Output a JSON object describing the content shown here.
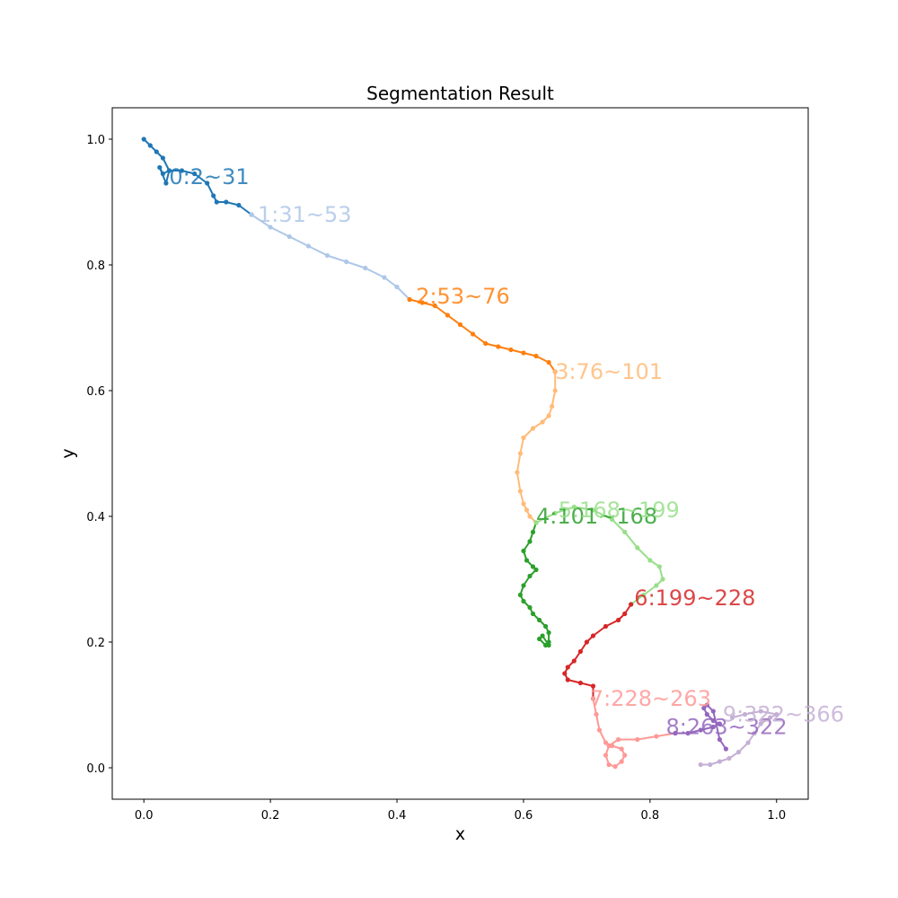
{
  "chart_data": {
    "type": "line",
    "title": "Segmentation Result",
    "xlabel": "x",
    "ylabel": "y",
    "xlim": [
      -0.05,
      1.05
    ],
    "ylim": [
      -0.05,
      1.05
    ],
    "x_ticks": [
      "0.0",
      "0.2",
      "0.4",
      "0.6",
      "0.8",
      "1.0"
    ],
    "y_ticks": [
      "0.0",
      "0.2",
      "0.4",
      "0.6",
      "0.8",
      "1.0"
    ],
    "grid": false,
    "markers": true,
    "series": [
      {
        "name": "0:2~31",
        "color": "#1f77b4",
        "label_at": [
          0.04,
          0.94
        ],
        "x": [
          0.0,
          0.01,
          0.02,
          0.03,
          0.04,
          0.035,
          0.025,
          0.03,
          0.04,
          0.06,
          0.08,
          0.1,
          0.11,
          0.115,
          0.13,
          0.15,
          0.17
        ],
        "y": [
          1.0,
          0.99,
          0.98,
          0.97,
          0.95,
          0.93,
          0.955,
          0.945,
          0.95,
          0.95,
          0.945,
          0.93,
          0.91,
          0.9,
          0.9,
          0.895,
          0.88
        ]
      },
      {
        "name": "1:31~53",
        "color": "#aec7e8",
        "label_at": [
          0.18,
          0.88
        ],
        "x": [
          0.17,
          0.2,
          0.23,
          0.26,
          0.29,
          0.32,
          0.35,
          0.38,
          0.4,
          0.42
        ],
        "y": [
          0.88,
          0.86,
          0.845,
          0.83,
          0.815,
          0.805,
          0.795,
          0.78,
          0.765,
          0.745
        ]
      },
      {
        "name": "2:53~76",
        "color": "#ff7f0e",
        "label_at": [
          0.43,
          0.75
        ],
        "x": [
          0.42,
          0.44,
          0.46,
          0.48,
          0.5,
          0.52,
          0.54,
          0.56,
          0.58,
          0.6,
          0.62,
          0.64,
          0.65
        ],
        "y": [
          0.745,
          0.74,
          0.735,
          0.72,
          0.705,
          0.69,
          0.675,
          0.67,
          0.665,
          0.66,
          0.655,
          0.645,
          0.63
        ]
      },
      {
        "name": "3:76~101",
        "color": "#ffbb78",
        "label_at": [
          0.65,
          0.63
        ],
        "x": [
          0.65,
          0.65,
          0.645,
          0.64,
          0.63,
          0.615,
          0.6,
          0.595,
          0.59,
          0.595,
          0.6,
          0.605,
          0.61,
          0.62
        ],
        "y": [
          0.63,
          0.6,
          0.575,
          0.56,
          0.55,
          0.54,
          0.525,
          0.5,
          0.47,
          0.44,
          0.42,
          0.41,
          0.4,
          0.39
        ]
      },
      {
        "name": "4:101~168",
        "color": "#2ca02c",
        "label_at": [
          0.62,
          0.4
        ],
        "x": [
          0.62,
          0.615,
          0.61,
          0.6,
          0.605,
          0.615,
          0.62,
          0.61,
          0.6,
          0.595,
          0.6,
          0.61,
          0.615,
          0.625,
          0.635,
          0.64,
          0.64,
          0.635,
          0.625,
          0.63,
          0.64
        ],
        "y": [
          0.39,
          0.375,
          0.36,
          0.345,
          0.33,
          0.32,
          0.315,
          0.305,
          0.29,
          0.275,
          0.265,
          0.255,
          0.245,
          0.235,
          0.225,
          0.215,
          0.2,
          0.195,
          0.205,
          0.21,
          0.195
        ]
      },
      {
        "name": "5:168~199",
        "color": "#98df8a",
        "label_at": [
          0.655,
          0.41
        ],
        "x": [
          0.62,
          0.65,
          0.68,
          0.71,
          0.74,
          0.76,
          0.78,
          0.8,
          0.815,
          0.82,
          0.81,
          0.79,
          0.77
        ],
        "y": [
          0.39,
          0.405,
          0.415,
          0.41,
          0.395,
          0.375,
          0.35,
          0.33,
          0.32,
          0.3,
          0.29,
          0.275,
          0.26
        ]
      },
      {
        "name": "6:199~228",
        "color": "#d62728",
        "label_at": [
          0.775,
          0.27
        ],
        "x": [
          0.77,
          0.76,
          0.75,
          0.73,
          0.71,
          0.7,
          0.69,
          0.68,
          0.67,
          0.665,
          0.67,
          0.69,
          0.71,
          0.71
        ],
        "y": [
          0.26,
          0.245,
          0.235,
          0.225,
          0.21,
          0.2,
          0.185,
          0.17,
          0.16,
          0.15,
          0.14,
          0.135,
          0.13,
          0.11
        ]
      },
      {
        "name": "7:228~263",
        "color": "#ff9896",
        "label_at": [
          0.705,
          0.11
        ],
        "x": [
          0.71,
          0.715,
          0.72,
          0.73,
          0.74,
          0.755,
          0.76,
          0.755,
          0.745,
          0.735,
          0.73,
          0.735,
          0.75,
          0.78,
          0.81,
          0.84
        ],
        "y": [
          0.11,
          0.085,
          0.06,
          0.04,
          0.035,
          0.03,
          0.02,
          0.01,
          0.002,
          0.005,
          0.02,
          0.035,
          0.045,
          0.045,
          0.05,
          0.055
        ]
      },
      {
        "name": "8:263~322",
        "color": "#9467bd",
        "label_at": [
          0.825,
          0.065
        ],
        "x": [
          0.84,
          0.86,
          0.88,
          0.9,
          0.91,
          0.9,
          0.89,
          0.885,
          0.89,
          0.9,
          0.91,
          0.92
        ],
        "y": [
          0.055,
          0.055,
          0.06,
          0.065,
          0.07,
          0.075,
          0.085,
          0.095,
          0.1,
          0.09,
          0.045,
          0.03
        ]
      },
      {
        "name": "9:322~366",
        "color": "#c5b0d5",
        "label_at": [
          0.915,
          0.085
        ],
        "x": [
          0.88,
          0.895,
          0.91,
          0.925,
          0.94,
          0.955,
          0.965,
          0.975,
          0.99,
          1.0,
          0.975,
          0.95,
          0.93
        ],
        "y": [
          0.005,
          0.005,
          0.01,
          0.015,
          0.025,
          0.04,
          0.055,
          0.07,
          0.08,
          0.085,
          0.09,
          0.085,
          0.08
        ]
      }
    ]
  }
}
